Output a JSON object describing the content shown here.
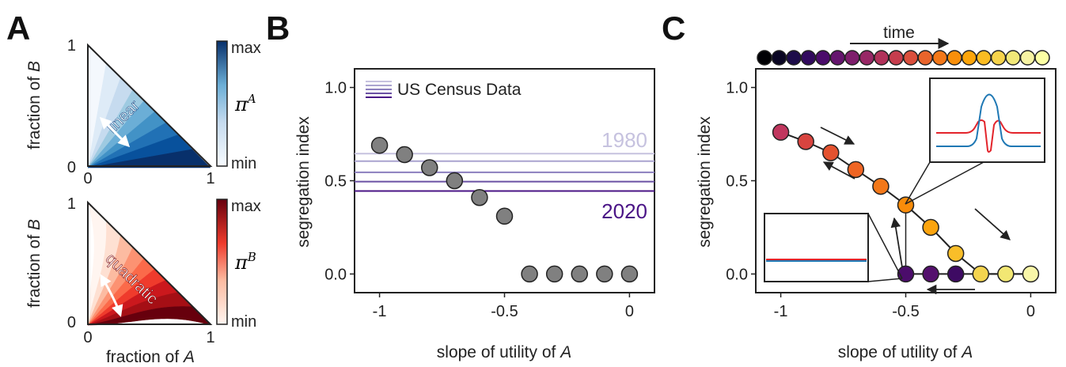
{
  "panels": {
    "A": {
      "letter": "A",
      "top": {
        "ylabel_prefix": "fraction of ",
        "ylabel_var": "B",
        "ticks": {
          "x0": "0",
          "x1": "1",
          "y0": "0",
          "y1": "1"
        },
        "annotation": "linear",
        "colorbar": {
          "max": "max",
          "min": "min",
          "symbol": "π",
          "superscript": "A",
          "color": "#08306b"
        },
        "colormap": [
          "#f4f8fd",
          "#deebf7",
          "#c6dbef",
          "#9ecae1",
          "#6baed6",
          "#4292c6",
          "#2171b5",
          "#08519c",
          "#08306b"
        ]
      },
      "bottom": {
        "ylabel_prefix": "fraction of ",
        "ylabel_var": "B",
        "xlabel_prefix": "fraction of ",
        "xlabel_var": "A",
        "ticks": {
          "x0": "0",
          "x1": "1",
          "y0": "0",
          "y1": "1"
        },
        "annotation": "quadratic",
        "colorbar": {
          "max": "max",
          "min": "min",
          "symbol": "π",
          "superscript": "B",
          "color": "#67000d"
        },
        "colormap": [
          "#fff5f0",
          "#fee0d2",
          "#fcbba1",
          "#fc9272",
          "#fb6a4a",
          "#ef3b2c",
          "#cb181d",
          "#a50f15",
          "#67000d"
        ]
      }
    },
    "B": {
      "letter": "B",
      "legend_label": "US Census Data",
      "annotation_top": "1980",
      "annotation_bottom": "2020"
    },
    "C": {
      "letter": "C",
      "time_label": "time"
    }
  },
  "chart_data": [
    {
      "id": "B",
      "type": "scatter",
      "xlabel": "slope of utility of A",
      "ylabel": "segregation index",
      "xlim": [
        -1.1,
        0.1
      ],
      "ylim": [
        -0.1,
        1.1
      ],
      "xticks": [
        {
          "v": -1,
          "label": "-1"
        },
        {
          "v": -0.5,
          "label": "-0.5"
        },
        {
          "v": 0,
          "label": "0"
        }
      ],
      "yticks": [
        {
          "v": 0,
          "label": "0.0"
        },
        {
          "v": 0.5,
          "label": "0.5"
        },
        {
          "v": 1,
          "label": "1.0"
        }
      ],
      "points": {
        "x": [
          -1.0,
          -0.9,
          -0.8,
          -0.7,
          -0.6,
          -0.5,
          -0.4,
          -0.3,
          -0.2,
          -0.1,
          0.0
        ],
        "y": [
          0.69,
          0.64,
          0.57,
          0.5,
          0.41,
          0.31,
          0.0,
          0.0,
          0.0,
          0.0,
          0.0
        ],
        "color": "#808080"
      },
      "census_lines": {
        "values": [
          0.645,
          0.605,
          0.545,
          0.495,
          0.445
        ],
        "colors": [
          "#c6c2df",
          "#aaa3cf",
          "#8c7fbe",
          "#6a51a3",
          "#4a1486"
        ]
      }
    },
    {
      "id": "C",
      "type": "line",
      "xlabel": "slope of utility of A",
      "ylabel": "segregation index",
      "xlim": [
        -1.1,
        0.1
      ],
      "ylim": [
        -0.1,
        1.1
      ],
      "xticks": [
        {
          "v": -1,
          "label": "-1"
        },
        {
          "v": -0.5,
          "label": "-0.5"
        },
        {
          "v": 0,
          "label": "0"
        }
      ],
      "yticks": [
        {
          "v": 0,
          "label": "0.0"
        },
        {
          "v": 0.5,
          "label": "0.5"
        },
        {
          "v": 1,
          "label": "1.0"
        }
      ],
      "forward": {
        "x": [
          -1.0,
          -0.9,
          -0.8,
          -0.7,
          -0.6,
          -0.5,
          -0.4,
          -0.3,
          -0.2,
          -0.1,
          0.0
        ],
        "y": [
          0.76,
          0.71,
          0.65,
          0.56,
          0.47,
          0.37,
          0.25,
          0.11,
          0.0,
          0.0,
          0.0
        ],
        "colors": [
          "#c0365e",
          "#d8443f",
          "#e4522f",
          "#ef6524",
          "#f37819",
          "#f98c0a",
          "#fba40e",
          "#f9be29",
          "#f4d44f",
          "#f2e773",
          "#f8f6a8"
        ]
      },
      "backward": {
        "x": [
          -0.5,
          -0.4,
          -0.3
        ],
        "y": [
          0.0,
          0.0,
          0.0
        ],
        "colors": [
          "#4b0c6b",
          "#54106d",
          "#3e0a63"
        ]
      },
      "timeline_colors": [
        "#000004",
        "#0b0724",
        "#1d0c4a",
        "#320a5e",
        "#4b0c6b",
        "#65156e",
        "#7e1e6c",
        "#982766",
        "#b1325a",
        "#c63d4d",
        "#da4f3c",
        "#e9642b",
        "#f37819",
        "#f98f0a",
        "#fca50a",
        "#fbbc22",
        "#f6d34b",
        "#f2e878",
        "#f7f3a3",
        "#fcffa4"
      ],
      "inset_segregated": {
        "blue": "#1f78b4",
        "red": "#e3242b"
      },
      "inset_mixed": {
        "blue": "#1f78b4",
        "red": "#e3242b"
      }
    }
  ]
}
